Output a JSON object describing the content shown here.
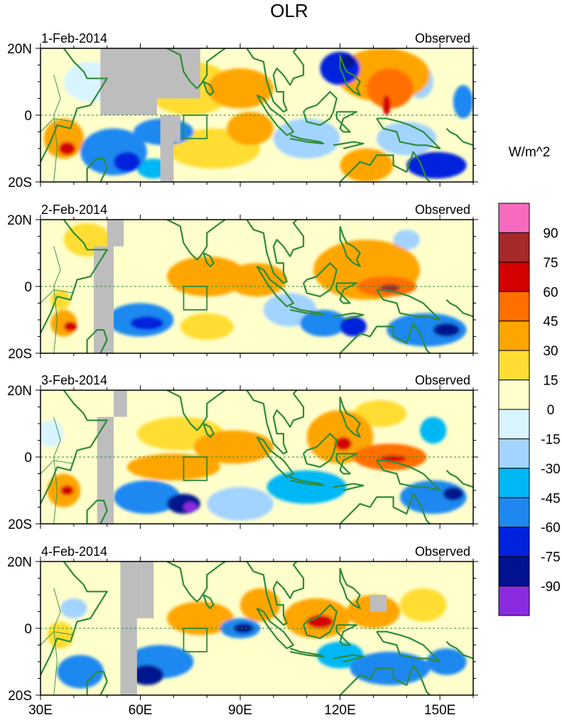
{
  "chart_data": {
    "type": "heatmap",
    "title": "OLR",
    "units_label": "W/m^2",
    "panel_right_label": "Observed",
    "xlim": [
      30,
      160
    ],
    "ylim": [
      -20,
      20
    ],
    "x_ticks": [
      {
        "value": 30,
        "label": "30E"
      },
      {
        "value": 60,
        "label": "60E"
      },
      {
        "value": 90,
        "label": "90E"
      },
      {
        "value": 120,
        "label": "120E"
      },
      {
        "value": 150,
        "label": "150E"
      }
    ],
    "y_ticks": [
      {
        "value": 20,
        "label": "20N"
      },
      {
        "value": 0,
        "label": "0"
      },
      {
        "value": -20,
        "label": "20S"
      }
    ],
    "missing_color": "#bdbdbd",
    "coast_color": "#2e8b3a",
    "colorbar": {
      "levels": [
        90,
        75,
        60,
        45,
        30,
        15,
        0,
        -15,
        -30,
        -45,
        -60,
        -75,
        -90
      ],
      "labels": [
        "90",
        "75",
        "60",
        "45",
        "30",
        "15",
        "0",
        "-15",
        "-30",
        "-45",
        "-60",
        "-75",
        "-90"
      ],
      "colors": [
        "#f76bbf",
        "#a52a2a",
        "#d40000",
        "#ff6f00",
        "#ffa500",
        "#ffdd33",
        "#ffffcc",
        "#d8f4ff",
        "#a3d3ff",
        "#00b7f5",
        "#1e88f0",
        "#0022dd",
        "#00128f",
        "#8a2be2"
      ]
    },
    "panels": [
      {
        "date": "1-Feb-2014",
        "blobs": [
          {
            "lon": 37,
            "lat": -7,
            "rx": 6,
            "ry": 6,
            "v": 40
          },
          {
            "lon": 38,
            "lat": -10,
            "rx": 2.5,
            "ry": 2,
            "v": 65
          },
          {
            "lon": 45,
            "lat": 10,
            "rx": 8,
            "ry": 6,
            "v": -12
          },
          {
            "lon": 52,
            "lat": -11,
            "rx": 10,
            "ry": 7,
            "v": -48
          },
          {
            "lon": 56,
            "lat": -14,
            "rx": 4,
            "ry": 3,
            "v": -70
          },
          {
            "lon": 67,
            "lat": -5,
            "rx": 9,
            "ry": 4,
            "v": -50
          },
          {
            "lon": 64,
            "lat": -16,
            "rx": 5,
            "ry": 3,
            "v": -40
          },
          {
            "lon": 75,
            "lat": 8,
            "rx": 13,
            "ry": 8,
            "v": 28
          },
          {
            "lon": 90,
            "lat": 8,
            "rx": 10,
            "ry": 6,
            "v": 32
          },
          {
            "lon": 82,
            "lat": -10,
            "rx": 14,
            "ry": 6,
            "v": 22
          },
          {
            "lon": 93,
            "lat": -4,
            "rx": 7,
            "ry": 5,
            "v": 42
          },
          {
            "lon": 110,
            "lat": -7,
            "rx": 10,
            "ry": 6,
            "v": -30
          },
          {
            "lon": 120,
            "lat": 14,
            "rx": 6,
            "ry": 5,
            "v": -70
          },
          {
            "lon": 122,
            "lat": 16,
            "rx": 2.5,
            "ry": 2,
            "v": -85
          },
          {
            "lon": 133,
            "lat": 12,
            "rx": 14,
            "ry": 8,
            "v": 40
          },
          {
            "lon": 135,
            "lat": 8,
            "rx": 7,
            "ry": 6,
            "v": 52
          },
          {
            "lon": 134,
            "lat": 3,
            "rx": 1.2,
            "ry": 3,
            "v": 62
          },
          {
            "lon": 128,
            "lat": -15,
            "rx": 8,
            "ry": 5,
            "v": 38
          },
          {
            "lon": 140,
            "lat": -7,
            "rx": 9,
            "ry": 5,
            "v": -28
          },
          {
            "lon": 149,
            "lat": -15,
            "rx": 9,
            "ry": 4,
            "v": -62
          },
          {
            "lon": 144,
            "lat": 10,
            "rx": 4,
            "ry": 5,
            "v": -25
          },
          {
            "lon": 157,
            "lat": 4,
            "rx": 3,
            "ry": 5,
            "v": -55
          }
        ],
        "missing": [
          {
            "lon0": 48,
            "lon1": 65,
            "lat0": 20,
            "lat1": 0
          },
          {
            "lon0": 62,
            "lon1": 78,
            "lat0": 20,
            "lat1": 5
          },
          {
            "lon0": 66,
            "lon1": 70,
            "lat0": 0,
            "lat1": -20
          },
          {
            "lon0": 70,
            "lon1": 72,
            "lat0": 0,
            "lat1": -8
          }
        ]
      },
      {
        "date": "2-Feb-2014",
        "blobs": [
          {
            "lon": 37,
            "lat": -11,
            "rx": 4,
            "ry": 4,
            "v": 40
          },
          {
            "lon": 39,
            "lat": -12,
            "rx": 2,
            "ry": 1.5,
            "v": 68
          },
          {
            "lon": 36,
            "lat": -4,
            "rx": 3,
            "ry": 3,
            "v": 20
          },
          {
            "lon": 44,
            "lat": 14,
            "rx": 7,
            "ry": 5,
            "v": 18
          },
          {
            "lon": 60,
            "lat": -10,
            "rx": 10,
            "ry": 5,
            "v": -48
          },
          {
            "lon": 62,
            "lat": -11,
            "rx": 5,
            "ry": 2,
            "v": -70
          },
          {
            "lon": 80,
            "lat": 3,
            "rx": 12,
            "ry": 6,
            "v": 30
          },
          {
            "lon": 80,
            "lat": -12,
            "rx": 8,
            "ry": 4,
            "v": 15
          },
          {
            "lon": 95,
            "lat": 2,
            "rx": 9,
            "ry": 5,
            "v": 40
          },
          {
            "lon": 105,
            "lat": -7,
            "rx": 8,
            "ry": 5,
            "v": -30
          },
          {
            "lon": 115,
            "lat": -11,
            "rx": 7,
            "ry": 4,
            "v": -48
          },
          {
            "lon": 128,
            "lat": 5,
            "rx": 16,
            "ry": 9,
            "v": 42
          },
          {
            "lon": 134,
            "lat": 0,
            "rx": 9,
            "ry": 3,
            "v": 58
          },
          {
            "lon": 135,
            "lat": -0.5,
            "rx": 3,
            "ry": 1.2,
            "v": 80
          },
          {
            "lon": 140,
            "lat": 14,
            "rx": 4,
            "ry": 3,
            "v": -20
          },
          {
            "lon": 146,
            "lat": -13,
            "rx": 12,
            "ry": 5,
            "v": -55
          },
          {
            "lon": 152,
            "lat": -13,
            "rx": 4,
            "ry": 2,
            "v": -80
          },
          {
            "lon": 124,
            "lat": -12,
            "rx": 4,
            "ry": 3,
            "v": -62
          }
        ],
        "missing": [
          {
            "lon0": 50,
            "lon1": 55,
            "lat0": 20,
            "lat1": 12
          },
          {
            "lon0": 46,
            "lon1": 52,
            "lat0": 12,
            "lat1": -20
          }
        ]
      },
      {
        "date": "3-Feb-2014",
        "blobs": [
          {
            "lon": 37,
            "lat": -10,
            "rx": 5,
            "ry": 5,
            "v": 38
          },
          {
            "lon": 38,
            "lat": -10,
            "rx": 2,
            "ry": 1.5,
            "v": 65
          },
          {
            "lon": 33,
            "lat": 7,
            "rx": 4,
            "ry": 4,
            "v": -15
          },
          {
            "lon": 70,
            "lat": -3,
            "rx": 14,
            "ry": 4,
            "v": 40
          },
          {
            "lon": 72,
            "lat": 7,
            "rx": 13,
            "ry": 5,
            "v": 22
          },
          {
            "lon": 62,
            "lat": -12,
            "rx": 10,
            "ry": 5,
            "v": -58
          },
          {
            "lon": 73,
            "lat": -14,
            "rx": 5,
            "ry": 3,
            "v": -80
          },
          {
            "lon": 75,
            "lat": -15,
            "rx": 2,
            "ry": 1.5,
            "v": -95
          },
          {
            "lon": 88,
            "lat": 3,
            "rx": 12,
            "ry": 5,
            "v": 38
          },
          {
            "lon": 90,
            "lat": -14,
            "rx": 10,
            "ry": 5,
            "v": -30
          },
          {
            "lon": 110,
            "lat": -9,
            "rx": 12,
            "ry": 5,
            "v": -45
          },
          {
            "lon": 120,
            "lat": 6,
            "rx": 10,
            "ry": 8,
            "v": 35
          },
          {
            "lon": 121,
            "lat": 4,
            "rx": 2.5,
            "ry": 2,
            "v": 65
          },
          {
            "lon": 135,
            "lat": 0,
            "rx": 11,
            "ry": 4,
            "v": 48
          },
          {
            "lon": 136,
            "lat": -0.5,
            "rx": 4,
            "ry": 1,
            "v": 70
          },
          {
            "lon": 132,
            "lat": 13,
            "rx": 8,
            "ry": 4,
            "v": 28
          },
          {
            "lon": 148,
            "lat": -12,
            "rx": 10,
            "ry": 5,
            "v": -60
          },
          {
            "lon": 154,
            "lat": -11,
            "rx": 3,
            "ry": 2,
            "v": -90
          },
          {
            "lon": 148,
            "lat": 8,
            "rx": 4,
            "ry": 4,
            "v": -40
          }
        ],
        "missing": [
          {
            "lon0": 52,
            "lon1": 56,
            "lat0": 20,
            "lat1": 12
          },
          {
            "lon0": 47,
            "lon1": 52,
            "lat0": 12,
            "lat1": -20
          }
        ]
      },
      {
        "date": "4-Feb-2014",
        "blobs": [
          {
            "lon": 36,
            "lat": -2,
            "rx": 4,
            "ry": 4,
            "v": 25
          },
          {
            "lon": 40,
            "lat": 6,
            "rx": 4,
            "ry": 3,
            "v": -20
          },
          {
            "lon": 66,
            "lat": -10,
            "rx": 10,
            "ry": 5,
            "v": -55
          },
          {
            "lon": 62,
            "lat": -14,
            "rx": 5,
            "ry": 3,
            "v": -80
          },
          {
            "lon": 42,
            "lat": -13,
            "rx": 7,
            "ry": 5,
            "v": -55
          },
          {
            "lon": 78,
            "lat": 3,
            "rx": 10,
            "ry": 5,
            "v": 35
          },
          {
            "lon": 90,
            "lat": 0,
            "rx": 6,
            "ry": 3,
            "v": -60
          },
          {
            "lon": 91,
            "lat": 0,
            "rx": 3,
            "ry": 1.5,
            "v": -90
          },
          {
            "lon": 96,
            "lat": 7,
            "rx": 6,
            "ry": 5,
            "v": 30
          },
          {
            "lon": 113,
            "lat": 3,
            "rx": 10,
            "ry": 6,
            "v": 42
          },
          {
            "lon": 114,
            "lat": 2,
            "rx": 4,
            "ry": 2,
            "v": 62
          },
          {
            "lon": 120,
            "lat": -8,
            "rx": 7,
            "ry": 4,
            "v": -45
          },
          {
            "lon": 130,
            "lat": 5,
            "rx": 8,
            "ry": 5,
            "v": 35
          },
          {
            "lon": 135,
            "lat": -12,
            "rx": 12,
            "ry": 5,
            "v": -58
          },
          {
            "lon": 152,
            "lat": -10,
            "rx": 6,
            "ry": 4,
            "v": -55
          },
          {
            "lon": 145,
            "lat": 7,
            "rx": 7,
            "ry": 5,
            "v": 28
          }
        ],
        "missing": [
          {
            "lon0": 59,
            "lon1": 64,
            "lat0": 20,
            "lat1": 3
          },
          {
            "lon0": 54,
            "lon1": 59,
            "lat0": 20,
            "lat1": -20
          },
          {
            "lon0": 129,
            "lon1": 134,
            "lat0": 10,
            "lat1": 5
          }
        ]
      }
    ]
  }
}
